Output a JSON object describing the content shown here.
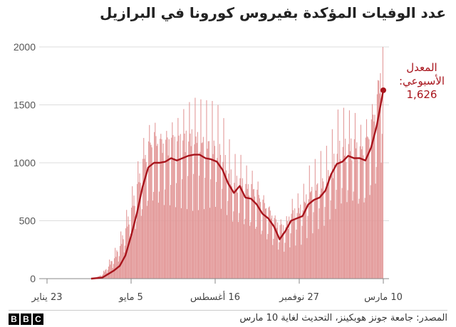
{
  "title": "عدد الوفيات المؤكدة بفيروس كورونا في البرازيل",
  "source": "المصدر: جامعة جونز هوبكينز، التحديث لغاية 10 مارس",
  "logo": [
    "B",
    "B",
    "C"
  ],
  "colors": {
    "bars": "#e39a9a",
    "line": "#a8141c",
    "grid": "#dddddd",
    "axis": "#888888"
  },
  "chart_data": {
    "type": "bar",
    "title": "عدد الوفيات المؤكدة بفيروس كورونا في البرازيل",
    "xlabel": "",
    "ylabel": "",
    "ylim": [
      0,
      2000
    ],
    "yticks": [
      0,
      500,
      1000,
      1500,
      2000
    ],
    "grid": true,
    "x_ticks": [
      {
        "date": "2020-01-23",
        "label": "23 يناير"
      },
      {
        "date": "2020-05-05",
        "label": "5 مايو"
      },
      {
        "date": "2020-08-16",
        "label": "16 أغسطس"
      },
      {
        "date": "2020-11-27",
        "label": "27 نوفمبر"
      },
      {
        "date": "2021-03-10",
        "label": "10 مارس"
      }
    ],
    "x_range": [
      "2020-01-23",
      "2021-03-10"
    ],
    "series": [
      {
        "kind": "daily_bars",
        "points": [
          [
            "2020-03-17",
            0
          ],
          [
            "2020-03-24",
            10
          ],
          [
            "2020-03-31",
            40
          ],
          [
            "2020-04-07",
            110
          ],
          [
            "2020-04-14",
            180
          ],
          [
            "2020-04-21",
            280
          ],
          [
            "2020-04-28",
            420
          ],
          [
            "2020-05-05",
            580
          ],
          [
            "2020-05-12",
            760
          ],
          [
            "2020-05-19",
            950
          ],
          [
            "2020-05-26",
            1080
          ],
          [
            "2020-06-02",
            1150
          ],
          [
            "2020-06-09",
            1100
          ],
          [
            "2020-06-16",
            1100
          ],
          [
            "2020-06-23",
            1130
          ],
          [
            "2020-06-30",
            1120
          ],
          [
            "2020-07-07",
            1150
          ],
          [
            "2020-07-14",
            1170
          ],
          [
            "2020-07-21",
            1180
          ],
          [
            "2020-07-28",
            1150
          ],
          [
            "2020-08-04",
            1130
          ],
          [
            "2020-08-11",
            1120
          ],
          [
            "2020-08-18",
            1100
          ],
          [
            "2020-08-25",
            1030
          ],
          [
            "2020-09-01",
            900
          ],
          [
            "2020-09-08",
            800
          ],
          [
            "2020-09-15",
            820
          ],
          [
            "2020-09-22",
            760
          ],
          [
            "2020-09-29",
            750
          ],
          [
            "2020-10-06",
            700
          ],
          [
            "2020-10-13",
            620
          ],
          [
            "2020-10-20",
            560
          ],
          [
            "2020-10-27",
            480
          ],
          [
            "2020-11-03",
            430
          ],
          [
            "2020-11-10",
            420
          ],
          [
            "2020-11-17",
            540
          ],
          [
            "2020-11-24",
            560
          ],
          [
            "2020-12-01",
            600
          ],
          [
            "2020-12-08",
            720
          ],
          [
            "2020-12-15",
            750
          ],
          [
            "2020-12-22",
            800
          ],
          [
            "2020-12-29",
            820
          ],
          [
            "2021-01-05",
            920
          ],
          [
            "2021-01-12",
            1070
          ],
          [
            "2021-01-19",
            1100
          ],
          [
            "2021-01-26",
            1100
          ],
          [
            "2021-02-02",
            1120
          ],
          [
            "2021-02-09",
            1050
          ],
          [
            "2021-02-16",
            1110
          ],
          [
            "2021-02-23",
            1250
          ],
          [
            "2021-03-02",
            1450
          ],
          [
            "2021-03-10",
            1900
          ]
        ]
      },
      {
        "kind": "line",
        "name": "المعدل الأسبوعي",
        "points": [
          [
            "2020-03-17",
            0
          ],
          [
            "2020-03-31",
            10
          ],
          [
            "2020-04-14",
            70
          ],
          [
            "2020-04-21",
            110
          ],
          [
            "2020-04-28",
            200
          ],
          [
            "2020-05-05",
            370
          ],
          [
            "2020-05-12",
            560
          ],
          [
            "2020-05-19",
            790
          ],
          [
            "2020-05-26",
            960
          ],
          [
            "2020-06-02",
            1000
          ],
          [
            "2020-06-09",
            1000
          ],
          [
            "2020-06-16",
            1010
          ],
          [
            "2020-06-23",
            1040
          ],
          [
            "2020-06-30",
            1020
          ],
          [
            "2020-07-07",
            1040
          ],
          [
            "2020-07-14",
            1060
          ],
          [
            "2020-07-21",
            1070
          ],
          [
            "2020-07-28",
            1070
          ],
          [
            "2020-08-04",
            1040
          ],
          [
            "2020-08-11",
            1030
          ],
          [
            "2020-08-18",
            1010
          ],
          [
            "2020-08-25",
            940
          ],
          [
            "2020-09-01",
            820
          ],
          [
            "2020-09-08",
            740
          ],
          [
            "2020-09-15",
            800
          ],
          [
            "2020-09-22",
            700
          ],
          [
            "2020-09-29",
            690
          ],
          [
            "2020-10-06",
            640
          ],
          [
            "2020-10-13",
            560
          ],
          [
            "2020-10-20",
            520
          ],
          [
            "2020-10-27",
            450
          ],
          [
            "2020-11-03",
            340
          ],
          [
            "2020-11-10",
            410
          ],
          [
            "2020-11-17",
            500
          ],
          [
            "2020-11-24",
            520
          ],
          [
            "2020-12-01",
            540
          ],
          [
            "2020-12-08",
            640
          ],
          [
            "2020-12-15",
            680
          ],
          [
            "2020-12-22",
            700
          ],
          [
            "2020-12-29",
            760
          ],
          [
            "2021-01-05",
            900
          ],
          [
            "2021-01-12",
            990
          ],
          [
            "2021-01-19",
            1010
          ],
          [
            "2021-01-26",
            1060
          ],
          [
            "2021-02-02",
            1040
          ],
          [
            "2021-02-09",
            1040
          ],
          [
            "2021-02-16",
            1020
          ],
          [
            "2021-02-23",
            1130
          ],
          [
            "2021-03-02",
            1320
          ],
          [
            "2021-03-10",
            1626
          ]
        ]
      }
    ],
    "annotation": {
      "lines": [
        "المعدل",
        "الأسبوعي:",
        "1,626"
      ],
      "date": "2021-03-10",
      "value": 1626
    }
  }
}
